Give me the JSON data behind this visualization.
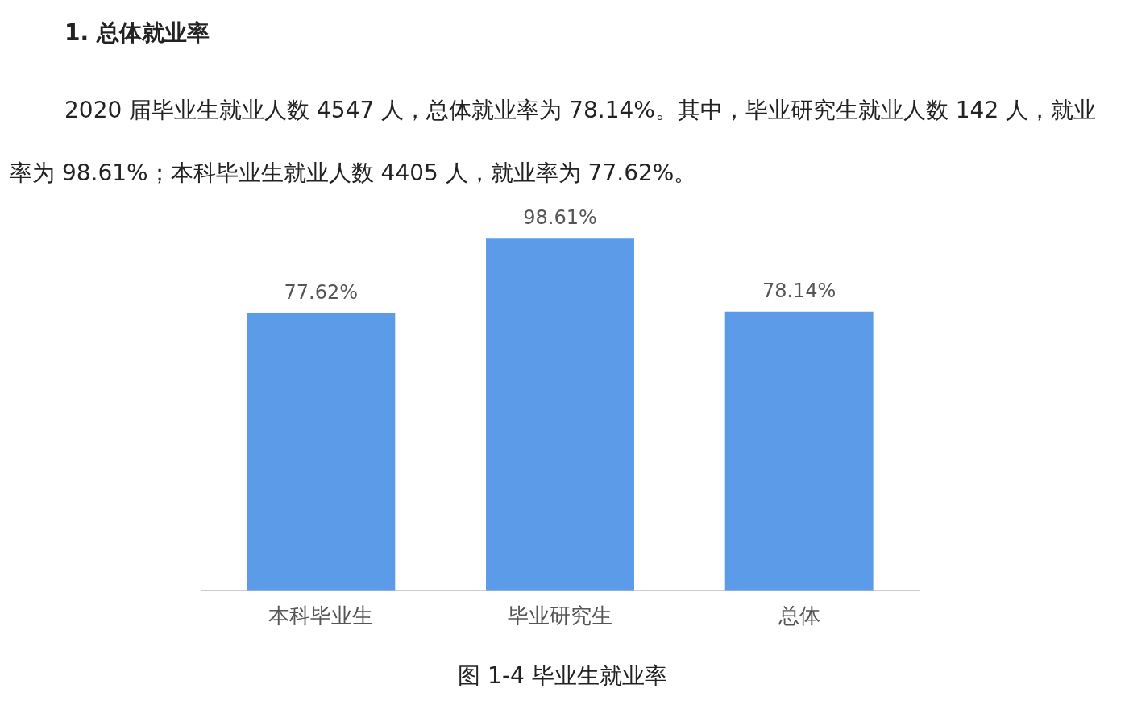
{
  "chart_data": {
    "type": "bar",
    "title": "1. 总体就业率",
    "subtitle": "2020 届毕业生就业人数 4547 人，总体就业率为 78.14%。其中，毕业研究生就业人数 142 人，就业率为 98.61%；本科毕业生就业人数 4405 人，就业率为 77.62%。",
    "categories": [
      "本科毕业生",
      "毕业研究生",
      "总体"
    ],
    "values": [
      77.62,
      98.61,
      78.14
    ],
    "color": "#5b9be8",
    "value_labels": [
      "77.62%",
      "98.61%",
      "78.14%"
    ],
    "tick_labels": "x",
    "grid": false,
    "legend": false,
    "annotations": [
      "图 1-4 毕业生就业率"
    ]
  }
}
